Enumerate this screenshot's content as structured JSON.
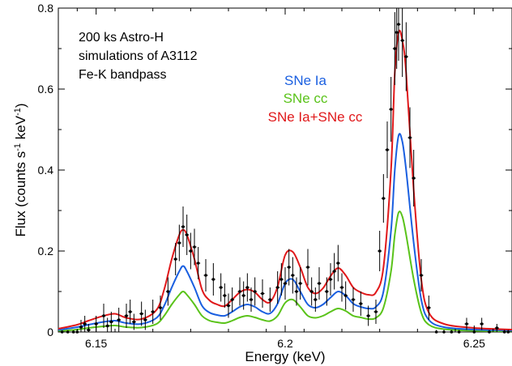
{
  "chart_data": {
    "type": "line",
    "title": "",
    "xlabel": "Energy (keV)",
    "ylabel_parts": [
      "Flux (counts s",
      "-1",
      " keV",
      "-1",
      ")"
    ],
    "xlim": [
      6.14,
      6.26
    ],
    "ylim": [
      0,
      0.8
    ],
    "x_ticks": [
      {
        "value": 6.15,
        "label": "6.15"
      },
      {
        "value": 6.2,
        "label": "6.2"
      },
      {
        "value": 6.25,
        "label": "6.25"
      }
    ],
    "y_ticks": [
      {
        "value": 0,
        "label": "0"
      },
      {
        "value": 0.2,
        "label": "0.2"
      },
      {
        "value": 0.4,
        "label": "0.4"
      },
      {
        "value": 0.6,
        "label": "0.6"
      },
      {
        "value": 0.8,
        "label": "0.8"
      }
    ],
    "grid": false,
    "annotation": [
      "200 ks Astro-H",
      "simulations of A3112",
      "Fe-K bandpass"
    ],
    "legend_position": "top-center",
    "series": [
      {
        "name": "SNe Ia",
        "color": "#1a5fe0",
        "x": [
          6.14,
          6.145,
          6.148,
          6.152,
          6.155,
          6.158,
          6.162,
          6.166,
          6.168,
          6.17,
          6.172,
          6.173,
          6.174,
          6.176,
          6.178,
          6.18,
          6.182,
          6.184,
          6.186,
          6.188,
          6.19,
          6.192,
          6.194,
          6.196,
          6.198,
          6.2,
          6.202,
          6.204,
          6.206,
          6.208,
          6.21,
          6.212,
          6.214,
          6.216,
          6.218,
          6.22,
          6.222,
          6.224,
          6.226,
          6.228,
          6.229,
          6.23,
          6.231,
          6.232,
          6.234,
          6.236,
          6.238,
          6.242,
          6.25,
          6.26
        ],
        "y": [
          0.005,
          0.012,
          0.018,
          0.025,
          0.028,
          0.022,
          0.02,
          0.035,
          0.065,
          0.11,
          0.15,
          0.163,
          0.15,
          0.11,
          0.065,
          0.048,
          0.042,
          0.04,
          0.05,
          0.062,
          0.068,
          0.062,
          0.05,
          0.046,
          0.07,
          0.12,
          0.13,
          0.1,
          0.068,
          0.06,
          0.068,
          0.085,
          0.1,
          0.09,
          0.07,
          0.062,
          0.058,
          0.062,
          0.1,
          0.25,
          0.4,
          0.485,
          0.47,
          0.4,
          0.22,
          0.08,
          0.03,
          0.012,
          0.006,
          0.004
        ]
      },
      {
        "name": "SNe cc",
        "color": "#5ac31a",
        "x": [
          6.14,
          6.145,
          6.148,
          6.152,
          6.155,
          6.158,
          6.162,
          6.166,
          6.168,
          6.17,
          6.172,
          6.173,
          6.174,
          6.176,
          6.178,
          6.18,
          6.182,
          6.184,
          6.186,
          6.188,
          6.19,
          6.192,
          6.194,
          6.196,
          6.198,
          6.2,
          6.202,
          6.204,
          6.206,
          6.208,
          6.21,
          6.212,
          6.214,
          6.216,
          6.218,
          6.22,
          6.222,
          6.224,
          6.226,
          6.228,
          6.229,
          6.23,
          6.231,
          6.232,
          6.234,
          6.236,
          6.238,
          6.242,
          6.25,
          6.26
        ],
        "y": [
          0.002,
          0.006,
          0.01,
          0.014,
          0.016,
          0.012,
          0.011,
          0.02,
          0.04,
          0.068,
          0.092,
          0.1,
          0.092,
          0.068,
          0.04,
          0.028,
          0.024,
          0.022,
          0.028,
          0.036,
          0.04,
          0.036,
          0.03,
          0.027,
          0.04,
          0.072,
          0.08,
          0.062,
          0.04,
          0.035,
          0.04,
          0.05,
          0.058,
          0.052,
          0.04,
          0.036,
          0.032,
          0.035,
          0.06,
          0.15,
          0.24,
          0.295,
          0.285,
          0.24,
          0.13,
          0.048,
          0.018,
          0.007,
          0.003,
          0.002
        ]
      },
      {
        "name": "SNe Ia+SNe cc",
        "color": "#e0181a",
        "x": [
          6.14,
          6.145,
          6.148,
          6.152,
          6.155,
          6.158,
          6.162,
          6.166,
          6.168,
          6.17,
          6.172,
          6.173,
          6.174,
          6.176,
          6.178,
          6.18,
          6.182,
          6.184,
          6.186,
          6.188,
          6.19,
          6.192,
          6.194,
          6.196,
          6.198,
          6.2,
          6.202,
          6.204,
          6.206,
          6.208,
          6.21,
          6.212,
          6.214,
          6.216,
          6.218,
          6.22,
          6.222,
          6.224,
          6.226,
          6.228,
          6.229,
          6.23,
          6.231,
          6.232,
          6.234,
          6.236,
          6.238,
          6.242,
          6.25,
          6.26
        ],
        "y": [
          0.008,
          0.018,
          0.028,
          0.04,
          0.045,
          0.035,
          0.032,
          0.055,
          0.105,
          0.18,
          0.24,
          0.252,
          0.24,
          0.18,
          0.105,
          0.078,
          0.068,
          0.064,
          0.08,
          0.098,
          0.105,
          0.098,
          0.08,
          0.074,
          0.112,
          0.19,
          0.198,
          0.16,
          0.11,
          0.095,
          0.108,
          0.138,
          0.158,
          0.14,
          0.11,
          0.098,
          0.092,
          0.098,
          0.16,
          0.4,
          0.64,
          0.74,
          0.72,
          0.64,
          0.35,
          0.13,
          0.048,
          0.02,
          0.01,
          0.006
        ]
      },
      {
        "name": "",
        "kind": "points",
        "color": "#000000",
        "x": [
          6.141,
          6.1425,
          6.144,
          6.145,
          6.146,
          6.147,
          6.148,
          6.15,
          6.152,
          6.153,
          6.154,
          6.156,
          6.158,
          6.159,
          6.16,
          6.162,
          6.163,
          6.165,
          6.167,
          6.169,
          6.171,
          6.172,
          6.173,
          6.174,
          6.175,
          6.176,
          6.177,
          6.179,
          6.181,
          6.183,
          6.184,
          6.185,
          6.186,
          6.188,
          6.189,
          6.19,
          6.191,
          6.192,
          6.194,
          6.196,
          6.198,
          6.199,
          6.2,
          6.201,
          6.202,
          6.203,
          6.204,
          6.206,
          6.207,
          6.208,
          6.209,
          6.211,
          6.212,
          6.213,
          6.214,
          6.215,
          6.216,
          6.218,
          6.22,
          6.222,
          6.224,
          6.225,
          6.226,
          6.227,
          6.228,
          6.229,
          6.2295,
          6.23,
          6.231,
          6.232,
          6.233,
          6.234,
          6.236,
          6.238,
          6.24,
          6.242,
          6.244,
          6.246,
          6.248,
          6.25,
          6.252,
          6.254,
          6.256,
          6.258,
          6.259
        ],
        "y": [
          0.0,
          0.0,
          0.0,
          0.0,
          0.012,
          0.02,
          0.005,
          0.02,
          0.04,
          0.015,
          0.025,
          0.03,
          0.04,
          0.05,
          0.025,
          0.045,
          0.03,
          0.05,
          0.06,
          0.1,
          0.18,
          0.22,
          0.26,
          0.24,
          0.2,
          0.21,
          0.17,
          0.14,
          0.13,
          0.11,
          0.09,
          0.065,
          0.08,
          0.1,
          0.09,
          0.11,
          0.08,
          0.1,
          0.095,
          0.08,
          0.11,
          0.13,
          0.12,
          0.16,
          0.14,
          0.1,
          0.12,
          0.16,
          0.1,
          0.08,
          0.12,
          0.1,
          0.13,
          0.15,
          0.17,
          0.11,
          0.09,
          0.08,
          0.07,
          0.04,
          0.05,
          0.2,
          0.33,
          0.45,
          0.55,
          0.7,
          0.74,
          0.76,
          0.72,
          0.68,
          0.48,
          0.38,
          0.14,
          0.06,
          0.0,
          0.0,
          0.0,
          0.0,
          0.02,
          0.0,
          0.02,
          0.0,
          0.01,
          0.0,
          0.0
        ],
        "err": [
          0.004,
          0.004,
          0.004,
          0.004,
          0.018,
          0.02,
          0.015,
          0.02,
          0.03,
          0.02,
          0.025,
          0.03,
          0.03,
          0.03,
          0.02,
          0.03,
          0.025,
          0.03,
          0.03,
          0.035,
          0.04,
          0.045,
          0.05,
          0.05,
          0.045,
          0.045,
          0.04,
          0.04,
          0.04,
          0.035,
          0.03,
          0.03,
          0.03,
          0.035,
          0.035,
          0.035,
          0.03,
          0.035,
          0.035,
          0.03,
          0.04,
          0.04,
          0.04,
          0.045,
          0.045,
          0.035,
          0.04,
          0.045,
          0.035,
          0.03,
          0.04,
          0.035,
          0.04,
          0.045,
          0.045,
          0.035,
          0.035,
          0.03,
          0.03,
          0.025,
          0.03,
          0.05,
          0.06,
          0.07,
          0.08,
          0.09,
          0.09,
          0.09,
          0.09,
          0.085,
          0.075,
          0.07,
          0.04,
          0.03,
          0.005,
          0.005,
          0.005,
          0.005,
          0.015,
          0.005,
          0.015,
          0.005,
          0.01,
          0.005,
          0.005
        ]
      }
    ]
  }
}
